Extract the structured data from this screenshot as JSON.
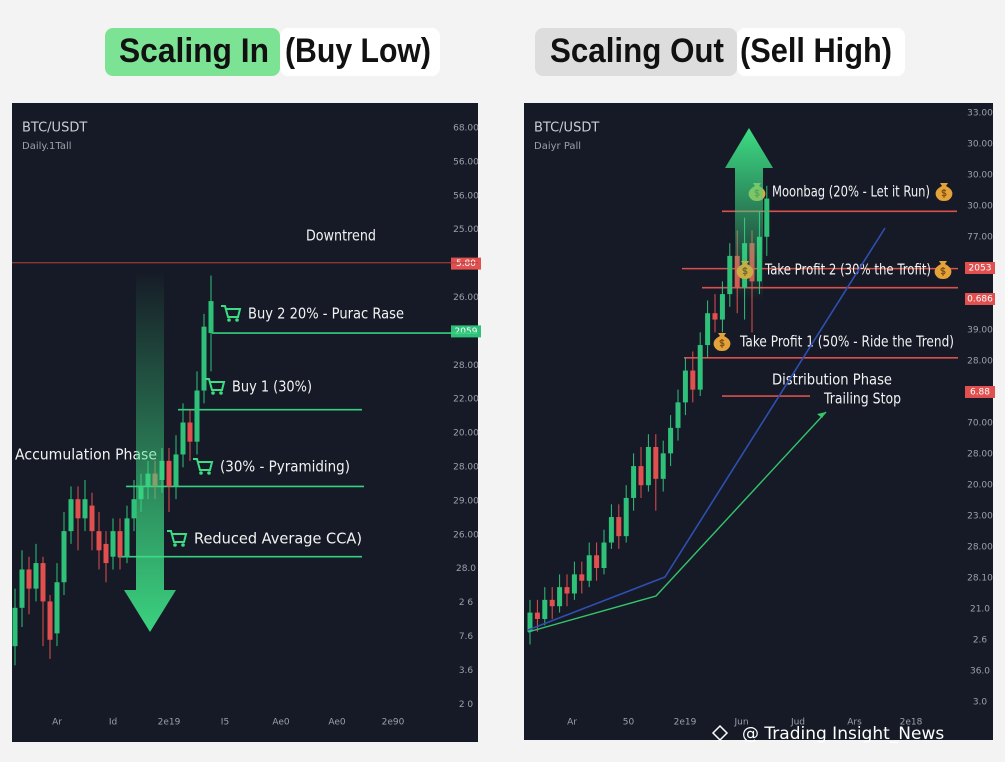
{
  "header": {
    "left_title": "Scaling In",
    "left_subtitle": "(Buy Low)",
    "right_title": "Scaling Out",
    "right_subtitle": "(Sell High)"
  },
  "chart_data": [
    {
      "type": "candlestick",
      "symbol": "BTC/USDT",
      "timeframe": "Daily.1Tall",
      "ylim": [
        0,
        100
      ],
      "up_color": "#2fc17a",
      "down_color": "#e0504f",
      "open": [
        15,
        21,
        27,
        24,
        28,
        22,
        17,
        25,
        33,
        38,
        35,
        37,
        33,
        31,
        29,
        33,
        29,
        35,
        38,
        40,
        42,
        41,
        44,
        40,
        45,
        50,
        47,
        55,
        64
      ],
      "close": [
        21,
        27,
        24,
        28,
        22,
        16,
        25,
        33,
        38,
        35,
        38,
        33,
        30,
        28,
        33,
        29,
        35,
        38,
        40,
        42,
        40,
        44,
        40,
        45,
        50,
        47,
        55,
        65,
        69
      ],
      "high": [
        24,
        30,
        29,
        31,
        29,
        23,
        28,
        36,
        40,
        40,
        41,
        39,
        36,
        33,
        35,
        35,
        37,
        41,
        42,
        44,
        44,
        46,
        46,
        48,
        53,
        52,
        58,
        67,
        73
      ],
      "low": [
        12,
        18,
        20,
        22,
        15,
        13,
        15,
        23,
        31,
        30,
        33,
        30,
        27,
        25,
        27,
        27,
        28,
        33,
        36,
        38,
        38,
        39,
        36,
        38,
        43,
        44,
        45,
        53,
        58
      ],
      "y_axis_labels": [
        "68.00",
        "56.00",
        "56.00",
        "25.00",
        {
          "label": "5.80",
          "color": "#e0504f"
        },
        "26.00",
        {
          "label": "2059",
          "color": "#2fc17a"
        },
        "28.00",
        "22.00",
        "20.00",
        "28.00",
        "29.00",
        "26.00",
        "28.0",
        "2 6",
        "7.6",
        "3.6",
        "2 0"
      ],
      "x_axis_labels": [
        "Ar",
        "Id",
        "2e19",
        "I5",
        "Ae0",
        "Ae0",
        "2e90"
      ],
      "levels": [
        {
          "value": 75,
          "color": "#b5413f"
        },
        {
          "value": 64,
          "color": "#35d07f"
        },
        {
          "value": 52,
          "color": "#35d07f"
        },
        {
          "value": 40,
          "color": "#35d07f"
        },
        {
          "value": 29,
          "color": "#35d07f"
        }
      ],
      "annotations": [
        "Downtrend",
        "Buy 2 20% - Purac Rase",
        "Buy 1 (30%)",
        "(30% - Pyramiding)",
        "Reduced Average CCA)",
        "Accumulation Phase"
      ]
    },
    {
      "type": "candlestick",
      "symbol": "BTC/USDT",
      "timeframe": "Daiyr Pall",
      "ylim": [
        0,
        100
      ],
      "up_color": "#2fc17a",
      "down_color": "#e0504f",
      "open": [
        17,
        20,
        19,
        22,
        21,
        24,
        23,
        26,
        25,
        29,
        27,
        31,
        35,
        32,
        38,
        43,
        40,
        46,
        41,
        45,
        49,
        53,
        58,
        55,
        62,
        67,
        66,
        70,
        76,
        71,
        78,
        72,
        79
      ],
      "close": [
        20,
        19,
        22,
        21,
        24,
        23,
        26,
        25,
        29,
        27,
        31,
        35,
        32,
        38,
        43,
        40,
        46,
        41,
        45,
        49,
        53,
        58,
        55,
        62,
        67,
        66,
        70,
        76,
        71,
        78,
        72,
        79,
        85
      ],
      "high": [
        22,
        22,
        24,
        24,
        26,
        26,
        28,
        28,
        31,
        31,
        33,
        37,
        37,
        40,
        45,
        46,
        48,
        48,
        47,
        51,
        55,
        60,
        61,
        64,
        69,
        70,
        72,
        78,
        80,
        82,
        80,
        83,
        87
      ],
      "low": [
        15,
        17,
        18,
        19,
        20,
        21,
        22,
        23,
        24,
        25,
        26,
        30,
        30,
        31,
        36,
        38,
        39,
        36,
        39,
        43,
        47,
        51,
        53,
        54,
        60,
        64,
        64,
        68,
        67,
        66,
        64,
        70,
        76
      ],
      "y_axis_labels": [
        "33.00",
        "30.00",
        "30.00",
        "30.00",
        "77.00",
        {
          "label": "2053",
          "color": "#e0504f"
        },
        {
          "label": "0.686",
          "color": "#e0504f"
        },
        "39.00",
        "28.00",
        {
          "label": "6.88",
          "color": "#e0504f"
        },
        "70.00",
        "28.00",
        "20.00",
        "23.00",
        "28.00",
        "28.10",
        "21.0",
        "2.6",
        "36.0",
        "3.0"
      ],
      "x_axis_labels": [
        "Ar",
        "50",
        "2e19",
        "Jun",
        "Jud",
        "Ars",
        "2e18"
      ],
      "levels": [
        {
          "value": 83,
          "color": "#d9504e"
        },
        {
          "value": 74,
          "color": "#d9504e"
        },
        {
          "value": 71,
          "color": "#d9504e"
        },
        {
          "value": 60,
          "color": "#d9504e"
        },
        {
          "value": 54,
          "color": "#d9504e"
        }
      ],
      "annotations": [
        "Moonbag (20% - Let it Run)",
        "Take Profit 2 (30% the Trofit)",
        "Take Profit 1 (50% - Ride the Trend)",
        "Distribution Phase",
        "Trailing Stop"
      ]
    }
  ],
  "watermark": "@ Trading Insight_News"
}
